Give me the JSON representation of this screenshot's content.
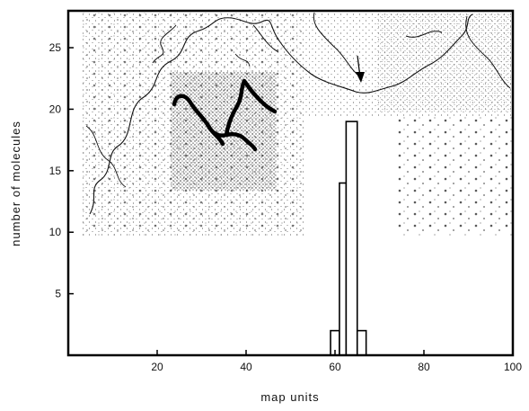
{
  "chart_data": {
    "type": "bar",
    "title": "",
    "xlabel": "map units",
    "ylabel": "number of molecules",
    "xlim": [
      0,
      100
    ],
    "ylim": [
      0,
      28
    ],
    "x_ticks": [
      20,
      40,
      60,
      80,
      100
    ],
    "y_ticks": [
      5,
      10,
      15,
      20,
      25
    ],
    "grid": false,
    "bins": [
      {
        "x_start": 59,
        "x_end": 61,
        "value": 2
      },
      {
        "x_start": 61,
        "x_end": 62.5,
        "value": 14
      },
      {
        "x_start": 62.5,
        "x_end": 65,
        "value": 19
      },
      {
        "x_start": 65,
        "x_end": 67,
        "value": 2
      }
    ],
    "background_image": "electron micrograph of DNA molecules (inset photograph behind histogram)",
    "arrow_annotation": "arrow marking a point on the molecule in the micrograph"
  }
}
